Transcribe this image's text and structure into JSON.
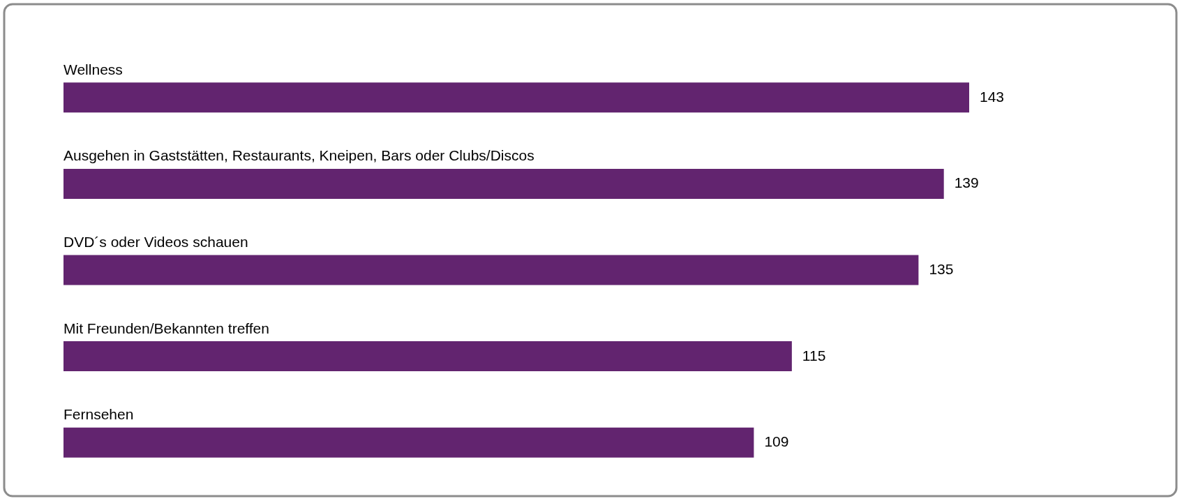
{
  "chart_data": {
    "type": "bar",
    "orientation": "horizontal",
    "categories": [
      "Wellness",
      "Ausgehen in Gaststätten, Restaurants, Kneipen, Bars oder Clubs/Discos",
      "DVD´s oder Videos schauen",
      "Mit Freunden/Bekannten treffen",
      "Fernsehen"
    ],
    "values": [
      143,
      139,
      135,
      115,
      109
    ],
    "color": "#62246f",
    "data_labels": true
  }
}
